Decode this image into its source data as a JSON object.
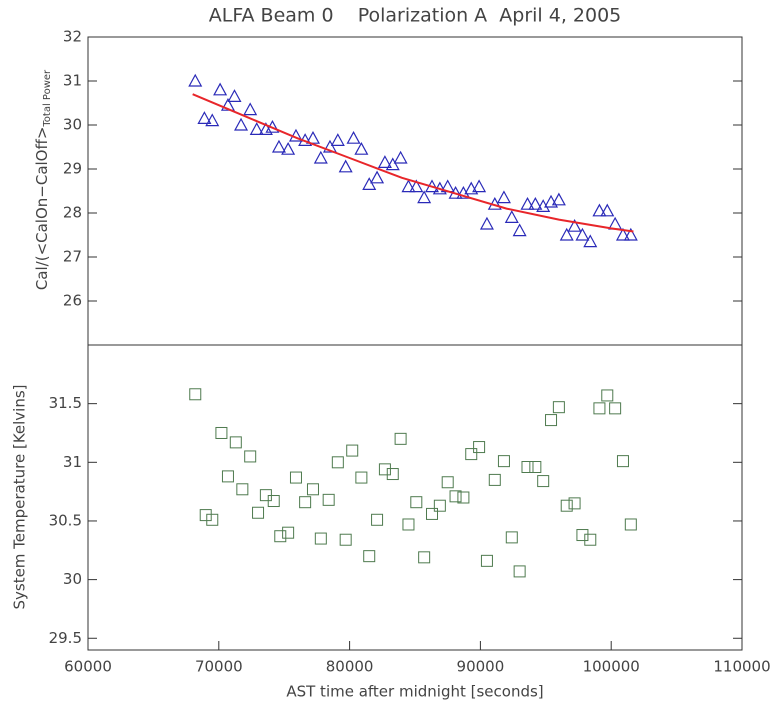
{
  "chart_data": [
    {
      "type": "scatter",
      "title": "ALFA Beam 0    Polarization A  April 4, 2005",
      "ylabel": "Cal/(<CalOn−CalOff>",
      "ylabel_sub": "Total Power",
      "xlim": [
        60000,
        110000
      ],
      "ylim": [
        25,
        32
      ],
      "yticks": [
        26,
        27,
        28,
        29,
        30,
        31,
        32
      ],
      "series": [
        {
          "marker": "triangle",
          "color": "#2a2ab8",
          "x": [
            68200,
            68900,
            69500,
            70100,
            70700,
            71200,
            71700,
            72400,
            72900,
            73600,
            74100,
            74600,
            75300,
            75900,
            76600,
            77200,
            77800,
            78500,
            79100,
            79700,
            80300,
            80900,
            81500,
            82100,
            82700,
            83300,
            83900,
            84500,
            85100,
            85700,
            86300,
            86900,
            87500,
            88100,
            88700,
            89300,
            89900,
            90500,
            91100,
            91800,
            92400,
            93000,
            93600,
            94200,
            94800,
            95400,
            96000,
            96600,
            97200,
            97800,
            98400,
            99100,
            99700,
            100300,
            100900,
            101500
          ],
          "values": [
            31.0,
            30.15,
            30.1,
            30.8,
            30.45,
            30.65,
            30.0,
            30.35,
            29.9,
            29.9,
            29.95,
            29.5,
            29.45,
            29.75,
            29.65,
            29.7,
            29.25,
            29.5,
            29.65,
            29.05,
            29.7,
            29.45,
            28.65,
            28.8,
            29.15,
            29.1,
            29.25,
            28.6,
            28.6,
            28.35,
            28.6,
            28.55,
            28.6,
            28.45,
            28.45,
            28.55,
            28.6,
            27.75,
            28.2,
            28.35,
            27.9,
            27.6,
            28.2,
            28.2,
            28.15,
            28.25,
            28.3,
            27.5,
            27.7,
            27.5,
            27.35,
            28.05,
            28.05,
            27.75,
            27.5,
            27.5
          ]
        },
        {
          "marker": "line",
          "color": "#e8262a",
          "x": [
            68000,
            72000,
            76000,
            80000,
            84000,
            88000,
            92000,
            96000,
            100000,
            101700
          ],
          "values": [
            30.7,
            30.2,
            29.7,
            29.25,
            28.8,
            28.45,
            28.1,
            27.85,
            27.65,
            27.58
          ]
        }
      ]
    },
    {
      "type": "scatter",
      "ylabel": "System Temperature [Kelvins]",
      "xlabel": "AST time after midnight [seconds]",
      "xlim": [
        60000,
        110000
      ],
      "xticks": [
        60000,
        70000,
        80000,
        90000,
        100000,
        110000
      ],
      "ylim": [
        29.4,
        32.0
      ],
      "yticks": [
        29.5,
        30.0,
        30.5,
        31.0,
        31.5
      ],
      "series": [
        {
          "marker": "square",
          "color": "#4e7a4e",
          "x": [
            68200,
            69000,
            69500,
            70200,
            70700,
            71300,
            71800,
            72400,
            73000,
            73600,
            74200,
            74700,
            75300,
            75900,
            76600,
            77200,
            77800,
            78400,
            79100,
            79700,
            80200,
            80900,
            81500,
            82100,
            82700,
            83300,
            83900,
            84500,
            85100,
            85700,
            86300,
            86900,
            87500,
            88100,
            88700,
            89300,
            89900,
            90500,
            91100,
            91800,
            92400,
            93000,
            93600,
            94200,
            94800,
            95400,
            96000,
            96600,
            97200,
            97800,
            98400,
            99100,
            99700,
            100300,
            100900,
            101500
          ],
          "values": [
            31.58,
            30.55,
            30.51,
            31.25,
            30.88,
            31.17,
            30.77,
            31.05,
            30.57,
            30.72,
            30.67,
            30.37,
            30.4,
            30.87,
            30.66,
            30.77,
            30.35,
            30.68,
            31.0,
            30.34,
            31.1,
            30.87,
            30.2,
            30.51,
            30.94,
            30.9,
            31.2,
            30.47,
            30.66,
            30.19,
            30.56,
            30.63,
            30.83,
            30.71,
            30.7,
            31.07,
            31.13,
            30.16,
            30.85,
            31.01,
            30.36,
            30.07,
            30.96,
            30.96,
            30.84,
            31.36,
            31.47,
            30.63,
            30.65,
            30.38,
            30.34,
            31.46,
            31.57,
            31.46,
            31.01,
            30.47
          ]
        }
      ]
    }
  ]
}
